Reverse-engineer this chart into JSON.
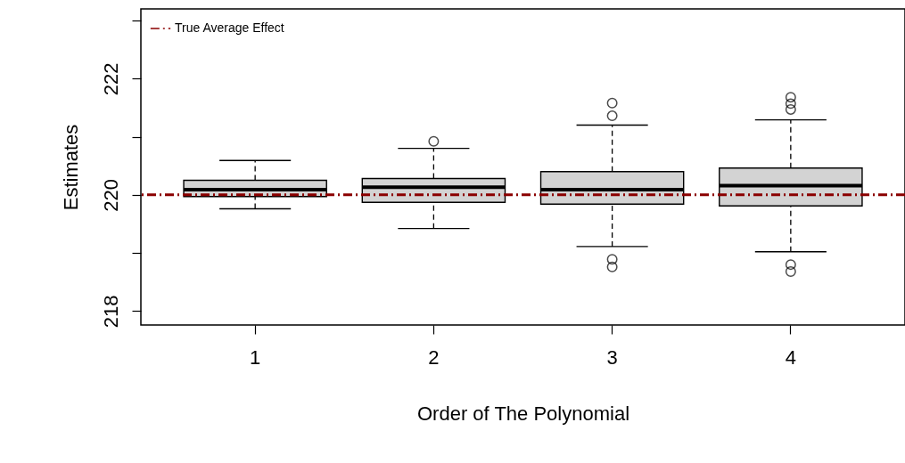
{
  "chart_data": {
    "type": "box",
    "xlabel": "Order of The Polynomial",
    "ylabel": "Estimates",
    "categories": [
      "1",
      "2",
      "3",
      "4"
    ],
    "series": [
      {
        "color": "#d3d3d3",
        "boxes": [
          {
            "low": 219.76,
            "q1": 219.97,
            "median": 220.09,
            "q3": 220.25,
            "high": 220.59
          },
          {
            "low": 219.42,
            "q1": 219.87,
            "median": 220.13,
            "q3": 220.28,
            "high": 220.8,
            "outliers": [
              220.92
            ]
          },
          {
            "low": 219.11,
            "q1": 219.84,
            "median": 220.09,
            "q3": 220.4,
            "high": 221.2,
            "outliers": [
              221.58,
              221.36,
              218.89,
              218.76
            ]
          },
          {
            "low": 219.02,
            "q1": 219.81,
            "median": 220.16,
            "q3": 220.46,
            "high": 221.29,
            "outliers": [
              221.68,
              221.57,
              221.47,
              218.8,
              218.68
            ]
          }
        ]
      }
    ],
    "ylim": [
      217.76,
      223.2
    ],
    "yticks": [
      218,
      {
        "value": 219,
        "label": null
      },
      220,
      {
        "value": 221,
        "label": null
      },
      222,
      {
        "value": 223,
        "label": null
      }
    ],
    "ref_lines": [
      {
        "axis": "y",
        "value": 220,
        "label": "True Average Effect",
        "color": "#8b0000",
        "line_style": "dashdot"
      }
    ],
    "legend": "top left",
    "grid": false
  }
}
